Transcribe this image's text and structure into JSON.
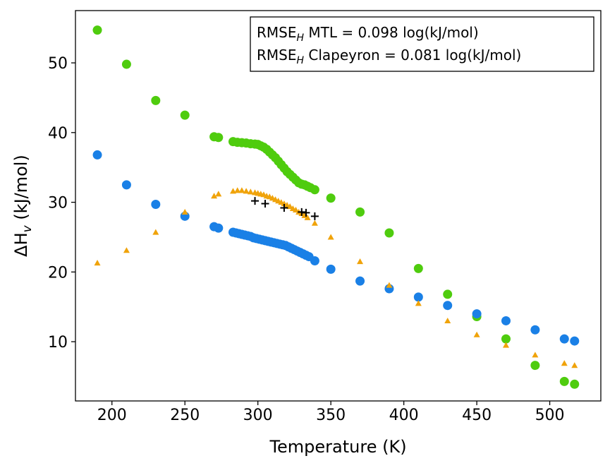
{
  "chart_data": {
    "type": "scatter",
    "xlabel": "Temperature (K)",
    "ylabel_main": "ΔH",
    "ylabel_sub": "v",
    "ylabel_unit": " (kJ/mol)",
    "xlim": [
      175,
      535
    ],
    "ylim": [
      1.5,
      57.5
    ],
    "xticks": [
      200,
      250,
      300,
      350,
      400,
      450,
      500
    ],
    "yticks": [
      10,
      20,
      30,
      40,
      50
    ],
    "legend_position": "top-right",
    "annotation_lines": [
      {
        "prefix": "RMSE",
        "sub": "H",
        "suffix": " MTL = 0.098 log(kJ/mol)"
      },
      {
        "prefix": "RMSE",
        "sub": "H",
        "suffix": " Clapeyron = 0.081 log(kJ/mol)"
      }
    ],
    "series": [
      {
        "name": "green circles",
        "marker": "circle",
        "color": "#4fcc0e",
        "points": [
          [
            190,
            54.7
          ],
          [
            210,
            49.8
          ],
          [
            230,
            44.6
          ],
          [
            250,
            42.5
          ],
          [
            270,
            39.4
          ],
          [
            273,
            39.3
          ],
          [
            283,
            38.7
          ],
          [
            286,
            38.6
          ],
          [
            289,
            38.55
          ],
          [
            292,
            38.5
          ],
          [
            295,
            38.4
          ],
          [
            298,
            38.35
          ],
          [
            300,
            38.3
          ],
          [
            302,
            38.1
          ],
          [
            304,
            37.9
          ],
          [
            306,
            37.6
          ],
          [
            308,
            37.2
          ],
          [
            310,
            36.8
          ],
          [
            312,
            36.4
          ],
          [
            314,
            35.9
          ],
          [
            316,
            35.4
          ],
          [
            318,
            34.9
          ],
          [
            320,
            34.4
          ],
          [
            322,
            34.0
          ],
          [
            324,
            33.6
          ],
          [
            326,
            33.2
          ],
          [
            328,
            32.8
          ],
          [
            330,
            32.6
          ],
          [
            332,
            32.5
          ],
          [
            334,
            32.3
          ],
          [
            336,
            32.1
          ],
          [
            339,
            31.8
          ],
          [
            350,
            30.6
          ],
          [
            370,
            28.6
          ],
          [
            390,
            25.6
          ],
          [
            410,
            20.5
          ],
          [
            430,
            16.8
          ],
          [
            450,
            13.6
          ],
          [
            470,
            10.4
          ],
          [
            490,
            6.6
          ],
          [
            510,
            4.3
          ],
          [
            517,
            3.9
          ]
        ]
      },
      {
        "name": "blue circles",
        "marker": "circle",
        "color": "#1a80e6",
        "points": [
          [
            190,
            36.8
          ],
          [
            210,
            32.5
          ],
          [
            230,
            29.7
          ],
          [
            250,
            28.0
          ],
          [
            270,
            26.5
          ],
          [
            273,
            26.3
          ],
          [
            283,
            25.7
          ],
          [
            285,
            25.6
          ],
          [
            287,
            25.5
          ],
          [
            289,
            25.4
          ],
          [
            291,
            25.3
          ],
          [
            293,
            25.2
          ],
          [
            295,
            25.1
          ],
          [
            297,
            24.9
          ],
          [
            299,
            24.8
          ],
          [
            301,
            24.7
          ],
          [
            303,
            24.6
          ],
          [
            305,
            24.5
          ],
          [
            307,
            24.4
          ],
          [
            309,
            24.3
          ],
          [
            311,
            24.2
          ],
          [
            313,
            24.1
          ],
          [
            315,
            24.0
          ],
          [
            317,
            23.9
          ],
          [
            319,
            23.8
          ],
          [
            321,
            23.6
          ],
          [
            323,
            23.4
          ],
          [
            325,
            23.2
          ],
          [
            327,
            23.0
          ],
          [
            329,
            22.8
          ],
          [
            331,
            22.6
          ],
          [
            333,
            22.4
          ],
          [
            335,
            22.2
          ],
          [
            339,
            21.6
          ],
          [
            350,
            20.4
          ],
          [
            370,
            18.7
          ],
          [
            390,
            17.6
          ],
          [
            410,
            16.4
          ],
          [
            430,
            15.2
          ],
          [
            450,
            14.0
          ],
          [
            470,
            13.0
          ],
          [
            490,
            11.7
          ],
          [
            510,
            10.4
          ],
          [
            517,
            10.1
          ]
        ]
      },
      {
        "name": "orange triangles",
        "marker": "triangle",
        "color": "#f0a30a",
        "points": [
          [
            190,
            21.3
          ],
          [
            210,
            23.1
          ],
          [
            230,
            25.7
          ],
          [
            250,
            28.6
          ],
          [
            270,
            30.9
          ],
          [
            273,
            31.2
          ],
          [
            283,
            31.6
          ],
          [
            286,
            31.7
          ],
          [
            289,
            31.7
          ],
          [
            292,
            31.6
          ],
          [
            295,
            31.5
          ],
          [
            298,
            31.4
          ],
          [
            300,
            31.3
          ],
          [
            302,
            31.2
          ],
          [
            304,
            31.1
          ],
          [
            306,
            30.9
          ],
          [
            308,
            30.8
          ],
          [
            310,
            30.6
          ],
          [
            312,
            30.4
          ],
          [
            314,
            30.2
          ],
          [
            316,
            30.0
          ],
          [
            318,
            29.8
          ],
          [
            320,
            29.6
          ],
          [
            322,
            29.4
          ],
          [
            324,
            29.1
          ],
          [
            326,
            28.9
          ],
          [
            328,
            28.6
          ],
          [
            330,
            28.4
          ],
          [
            332,
            28.1
          ],
          [
            334,
            27.8
          ],
          [
            339,
            27.0
          ],
          [
            350,
            25.0
          ],
          [
            370,
            21.5
          ],
          [
            390,
            18.1
          ],
          [
            410,
            15.5
          ],
          [
            430,
            13.0
          ],
          [
            450,
            11.0
          ],
          [
            470,
            9.5
          ],
          [
            490,
            8.1
          ],
          [
            510,
            6.9
          ],
          [
            517,
            6.6
          ]
        ]
      },
      {
        "name": "black crosses",
        "marker": "plus",
        "color": "#000000",
        "points": [
          [
            298,
            30.2
          ],
          [
            305,
            29.8
          ],
          [
            318,
            29.2
          ],
          [
            330,
            28.6
          ],
          [
            333,
            28.5
          ],
          [
            339,
            28.0
          ]
        ]
      }
    ]
  }
}
